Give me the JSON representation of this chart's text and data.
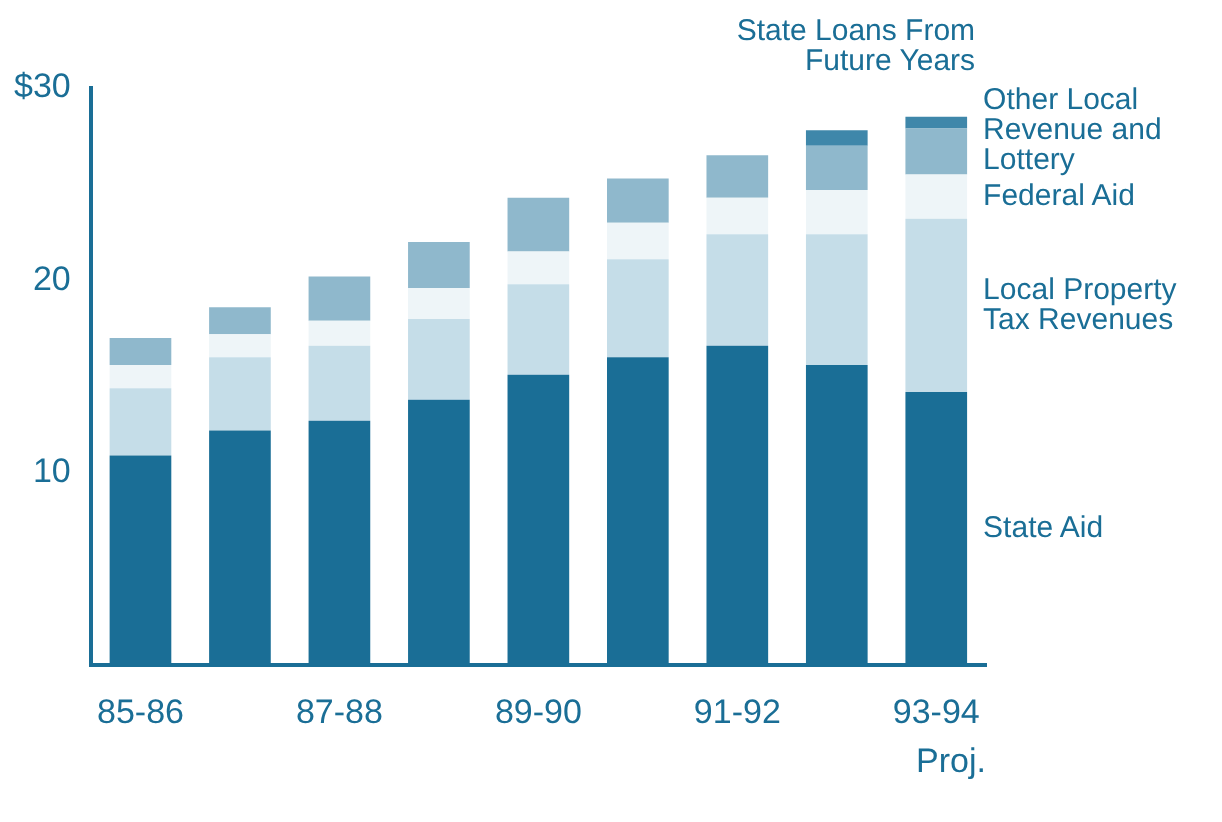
{
  "chart_data": {
    "type": "bar",
    "stacked": true,
    "legend": "right",
    "grid": false,
    "categories": [
      "85-86",
      null,
      "87-88",
      null,
      "89-90",
      null,
      "91-92",
      null,
      "93-94"
    ],
    "ylim": [
      0,
      30
    ],
    "yticks": [
      {
        "value": 0,
        "label": null
      },
      10,
      20,
      {
        "value": 30,
        "label": "$30"
      }
    ],
    "series": [
      {
        "name": "State Aid",
        "color": "#1a6e96",
        "values": [
          10.9,
          12.2,
          12.7,
          13.8,
          15.1,
          16.0,
          16.6,
          15.6,
          14.2
        ]
      },
      {
        "name": "Local Property Tax Revenues",
        "color": "#c5dde8",
        "values": [
          3.5,
          3.8,
          3.9,
          4.2,
          4.7,
          5.1,
          5.8,
          6.8,
          9.0
        ]
      },
      {
        "name": "Federal Aid",
        "color": "#eef5f8",
        "values": [
          1.2,
          1.2,
          1.3,
          1.6,
          1.7,
          1.9,
          1.9,
          2.3,
          2.3
        ]
      },
      {
        "name": "Other Local Revenue and Lottery",
        "color": "#8fb8cc",
        "values": [
          1.4,
          1.4,
          2.3,
          2.4,
          2.8,
          2.3,
          2.2,
          2.3,
          2.4
        ]
      },
      {
        "name": "State Loans From Future Years",
        "color": "#3f87aa",
        "values": [
          null,
          null,
          null,
          null,
          null,
          null,
          null,
          0.8,
          0.6
        ]
      }
    ],
    "annotations": [
      "Proj."
    ]
  }
}
